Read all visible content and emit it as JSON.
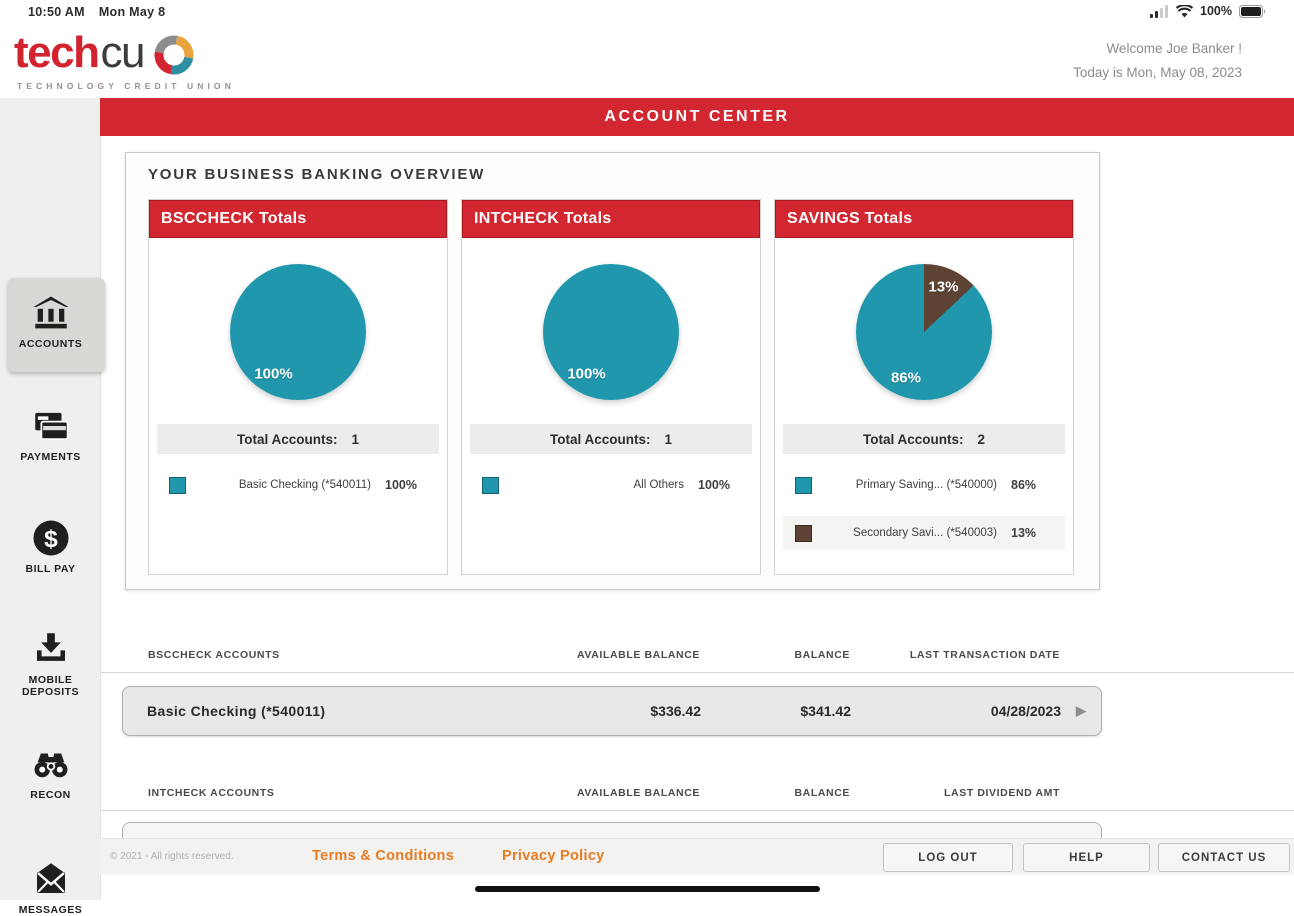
{
  "status_bar": {
    "time": "10:50 AM",
    "date": "Mon May 8",
    "battery": "100%"
  },
  "header": {
    "logo_text_1": "tech",
    "logo_text_2": "cu",
    "tagline": "TECHNOLOGY CREDIT UNION",
    "welcome_line_1": "Welcome  Joe Banker !",
    "welcome_line_2": "Today is Mon, May 08, 2023"
  },
  "banner": {
    "title": "ACCOUNT CENTER"
  },
  "sidebar": {
    "items": [
      {
        "label": "ACCOUNTS",
        "selected": true
      },
      {
        "label": "PAYMENTS",
        "selected": false
      },
      {
        "label": "BILL PAY",
        "selected": false
      },
      {
        "label": "MOBILE DEPOSITS",
        "selected": false
      },
      {
        "label": "RECON",
        "selected": false
      },
      {
        "label": "MESSAGES",
        "selected": false
      }
    ]
  },
  "overview": {
    "heading": "YOUR BUSINESS BANKING OVERVIEW",
    "total_accounts_label": "Total Accounts:",
    "cards": [
      {
        "title": "BSCCHECK Totals",
        "total_accounts": "1",
        "legend": [
          {
            "label": "Basic Checking (*540011)",
            "pct": "100%",
            "color": "#2097ad"
          }
        ]
      },
      {
        "title": "INTCHECK Totals",
        "total_accounts": "1",
        "legend": [
          {
            "label": "All Others",
            "pct": "100%",
            "color": "#2097ad"
          }
        ]
      },
      {
        "title": "SAVINGS Totals",
        "total_accounts": "2",
        "legend": [
          {
            "label": "Primary Saving...  (*540000)",
            "pct": "86%",
            "color": "#2097ad"
          },
          {
            "label": "Secondary Savi...  (*540003)",
            "pct": "13%",
            "color": "#5e4334"
          }
        ]
      }
    ]
  },
  "chart_data": [
    {
      "type": "pie",
      "title": "BSCCHECK Totals",
      "slices": [
        {
          "label": "Basic Checking (*540011)",
          "value": 100,
          "color": "#2097ad"
        }
      ],
      "legend_position": "bottom",
      "total_accounts": 1
    },
    {
      "type": "pie",
      "title": "INTCHECK Totals",
      "slices": [
        {
          "label": "All Others",
          "value": 100,
          "color": "#2097ad"
        }
      ],
      "legend_position": "bottom",
      "total_accounts": 1
    },
    {
      "type": "pie",
      "title": "SAVINGS Totals",
      "slices": [
        {
          "label": "Secondary Savi... (*540003)",
          "value": 13,
          "color": "#5e4334"
        },
        {
          "label": "Primary Saving... (*540000)",
          "value": 86,
          "color": "#2097ad"
        }
      ],
      "legend_position": "bottom",
      "total_accounts": 2
    }
  ],
  "tables": {
    "bsccheck": {
      "section": "BSCCHECK ACCOUNTS",
      "columns": [
        "AVAILABLE BALANCE",
        "BALANCE",
        "LAST TRANSACTION DATE"
      ],
      "rows": [
        {
          "name": "Basic Checking (*540011)",
          "available": "$336.42",
          "balance": "$341.42",
          "date": "04/28/2023"
        }
      ]
    },
    "intcheck": {
      "section": "INTCHECK ACCOUNTS",
      "columns": [
        "AVAILABLE BALANCE",
        "BALANCE",
        "LAST DIVIDEND AMT"
      ]
    }
  },
  "footer": {
    "copyright": "© 2021 - All rights reserved.",
    "terms": "Terms & Conditions",
    "privacy": "Privacy Policy",
    "logout": "LOG OUT",
    "help": "HELP",
    "contact": "CONTACT US"
  },
  "colors": {
    "brand_red": "#d22630",
    "teal": "#2097ad",
    "brown": "#5e4334",
    "link_orange": "#e87b22"
  }
}
